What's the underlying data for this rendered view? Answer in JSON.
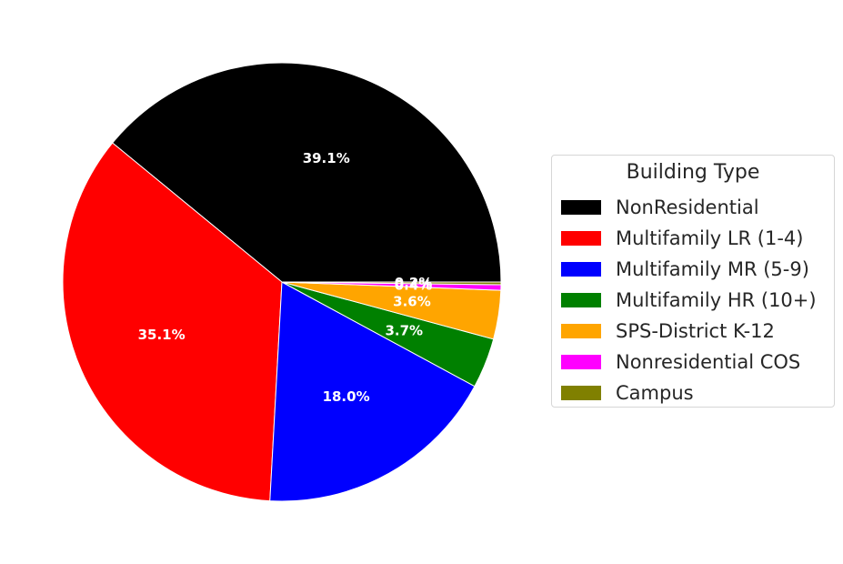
{
  "chart_data": {
    "type": "pie",
    "legend_title": "Building Type",
    "legend_position": "right",
    "slices": [
      {
        "label": "NonResidential",
        "value": 39.1,
        "value_label": "39.1%",
        "color": "#000000"
      },
      {
        "label": "Multifamily LR (1-4)",
        "value": 35.1,
        "value_label": "35.1%",
        "color": "#ff0000"
      },
      {
        "label": "Multifamily MR (5-9)",
        "value": 18.0,
        "value_label": "18.0%",
        "color": "#0000ff"
      },
      {
        "label": "Multifamily HR (10+)",
        "value": 3.7,
        "value_label": "3.7%",
        "color": "#008000"
      },
      {
        "label": "SPS-District K-12",
        "value": 3.6,
        "value_label": "3.6%",
        "color": "#ffa500"
      },
      {
        "label": "Nonresidential COS",
        "value": 0.4,
        "value_label": "0.4%",
        "color": "#ff00ff"
      },
      {
        "label": "Campus",
        "value": 0.2,
        "value_label": "0.2%",
        "color": "#808000"
      }
    ]
  }
}
